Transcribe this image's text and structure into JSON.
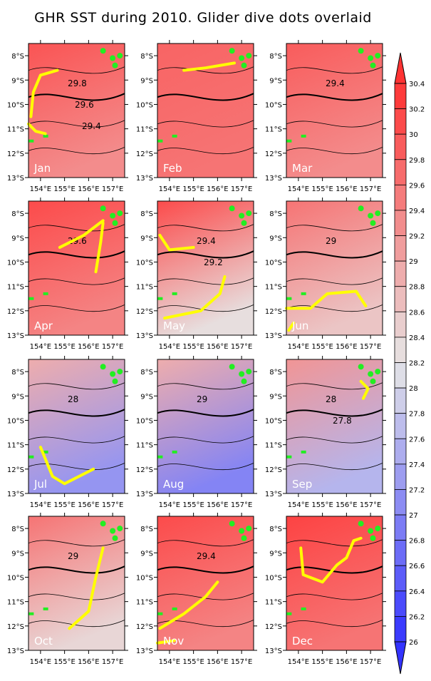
{
  "chart_data": {
    "type": "heatmap",
    "title": "GHR SST during 2010. Glider dive dots overlaid",
    "lon_range": [
      153.5,
      157.5
    ],
    "lat_range": [
      -13,
      -7.5
    ],
    "lon_ticks": [
      "154°E",
      "155°E",
      "156°E",
      "157°E"
    ],
    "lon_tick_values": [
      154,
      155,
      156,
      157
    ],
    "lat_ticks": [
      "8°S",
      "9°S",
      "10°S",
      "11°S",
      "12°S",
      "13°S"
    ],
    "lat_tick_values": [
      -8,
      -9,
      -10,
      -11,
      -12,
      -13
    ],
    "colorbar": {
      "min": 26,
      "max": 30.4,
      "step": 0.2,
      "labels": [
        "30.4",
        "30.2",
        "30",
        "29.8",
        "29.6",
        "29.4",
        "29.2",
        "29",
        "28.8",
        "28.6",
        "28.4",
        "28.2",
        "28",
        "27.8",
        "27.6",
        "27.4",
        "27.2",
        "27",
        "26.8",
        "26.6",
        "26.4",
        "26.2",
        "26"
      ],
      "colors": {
        "low": "#3333ff",
        "mid": "#e6e6e6",
        "high": "#ff3333"
      }
    },
    "panels": [
      {
        "month": "Jan",
        "sst_top": 30.0,
        "sst_bottom": 29.3,
        "contour_labels": [
          "29.8",
          "29.6",
          "29.4"
        ],
        "tracks": [
          [
            [
              154.7,
              -8.6
            ],
            [
              154.0,
              -8.8
            ],
            [
              153.7,
              -9.5
            ],
            [
              153.6,
              -10.5
            ]
          ],
          [
            [
              153.5,
              -10.8
            ],
            [
              153.8,
              -11.1
            ],
            [
              154.2,
              -11.2
            ]
          ]
        ]
      },
      {
        "month": "Feb",
        "sst_top": 29.8,
        "sst_bottom": 29.6,
        "contour_labels": [],
        "tracks": [
          [
            [
              154.6,
              -8.6
            ],
            [
              155.5,
              -8.5
            ],
            [
              156.7,
              -8.3
            ]
          ]
        ]
      },
      {
        "month": "Mar",
        "sst_top": 29.9,
        "sst_bottom": 29.3,
        "contour_labels": [
          "29.4"
        ],
        "tracks": []
      },
      {
        "month": "Apr",
        "sst_top": 30.1,
        "sst_bottom": 29.4,
        "contour_labels": [
          "29.6"
        ],
        "tracks": [
          [
            [
              154.8,
              -9.4
            ],
            [
              155.8,
              -8.9
            ],
            [
              156.6,
              -8.3
            ]
          ],
          [
            [
              156.3,
              -10.4
            ],
            [
              156.5,
              -9.2
            ],
            [
              156.6,
              -8.4
            ]
          ]
        ]
      },
      {
        "month": "May",
        "sst_top": 30.1,
        "sst_bottom": 28.3,
        "contour_labels": [
          "29.4",
          "29.2"
        ],
        "tracks": [
          [
            [
              153.6,
              -8.9
            ],
            [
              154.0,
              -9.5
            ],
            [
              155.0,
              -9.4
            ]
          ],
          [
            [
              153.8,
              -12.3
            ],
            [
              155.3,
              -12.0
            ],
            [
              156.1,
              -11.3
            ],
            [
              156.3,
              -10.6
            ]
          ]
        ]
      },
      {
        "month": "Jun",
        "sst_top": 29.6,
        "sst_bottom": 28.6,
        "contour_labels": [
          "29"
        ],
        "tracks": [
          [
            [
              153.5,
              -11.9
            ],
            [
              154.5,
              -11.9
            ],
            [
              155.2,
              -11.3
            ],
            [
              156.4,
              -11.2
            ],
            [
              156.8,
              -11.8
            ]
          ],
          [
            [
              153.6,
              -12.8
            ],
            [
              153.8,
              -12.5
            ]
          ]
        ]
      },
      {
        "month": "Jul",
        "sst_top": 28.9,
        "sst_bottom": 27.2,
        "contour_labels": [
          "28"
        ],
        "tracks": [
          [
            [
              154.0,
              -11.1
            ],
            [
              154.5,
              -12.3
            ],
            [
              155.0,
              -12.6
            ],
            [
              155.6,
              -12.3
            ],
            [
              156.2,
              -12.0
            ]
          ]
        ]
      },
      {
        "month": "Aug",
        "sst_top": 28.9,
        "sst_bottom": 27.0,
        "contour_labels": [
          "29"
        ],
        "tracks": []
      },
      {
        "month": "Sep",
        "sst_top": 29.2,
        "sst_bottom": 27.6,
        "contour_labels": [
          "28",
          "27.8"
        ],
        "tracks": [
          [
            [
              156.6,
              -8.4
            ],
            [
              156.9,
              -8.7
            ],
            [
              156.7,
              -9.1
            ]
          ]
        ]
      },
      {
        "month": "Oct",
        "sst_top": 29.6,
        "sst_bottom": 28.4,
        "contour_labels": [
          "29"
        ],
        "tracks": [
          [
            [
              155.2,
              -12.1
            ],
            [
              156.0,
              -11.4
            ],
            [
              156.3,
              -10.0
            ],
            [
              156.6,
              -8.8
            ]
          ]
        ]
      },
      {
        "month": "Nov",
        "sst_top": 30.1,
        "sst_bottom": 29.4,
        "contour_labels": [
          "29.4"
        ],
        "tracks": [
          [
            [
              153.6,
              -12.1
            ],
            [
              154.6,
              -11.5
            ],
            [
              155.5,
              -10.8
            ],
            [
              156.0,
              -10.2
            ]
          ],
          [
            [
              153.5,
              -12.7
            ],
            [
              154.2,
              -12.6
            ]
          ]
        ]
      },
      {
        "month": "Dec",
        "sst_top": 30.2,
        "sst_bottom": 29.6,
        "contour_labels": [],
        "tracks": [
          [
            [
              154.1,
              -8.8
            ],
            [
              154.2,
              -9.9
            ],
            [
              155.0,
              -10.2
            ],
            [
              155.6,
              -9.5
            ],
            [
              156.0,
              -9.2
            ],
            [
              156.3,
              -8.5
            ],
            [
              156.6,
              -8.4
            ]
          ]
        ]
      }
    ]
  }
}
